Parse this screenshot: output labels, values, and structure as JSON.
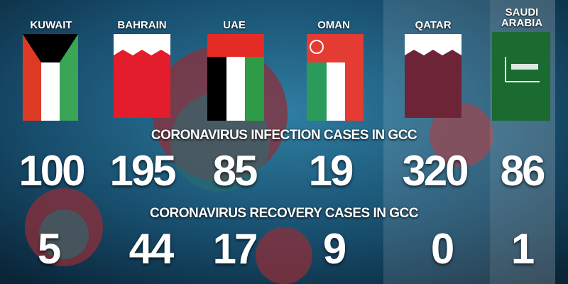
{
  "infection_heading": "CORONAVIRUS INFECTION CASES IN GCC",
  "recovery_heading": "CORONAVIRUS RECOVERY CASES IN GCC",
  "countries": [
    {
      "name": "KUWAIT",
      "infection": "100",
      "recovery": "5"
    },
    {
      "name": "BAHRAIN",
      "infection": "195",
      "recovery": "44"
    },
    {
      "name": "UAE",
      "infection": "85",
      "recovery": "17"
    },
    {
      "name": "OMAN",
      "infection": "19",
      "recovery": "9"
    },
    {
      "name": "QATAR",
      "infection": "320",
      "recovery": "0"
    },
    {
      "name": "SAUDI ARABIA",
      "infection": "86",
      "recovery": "1"
    }
  ]
}
